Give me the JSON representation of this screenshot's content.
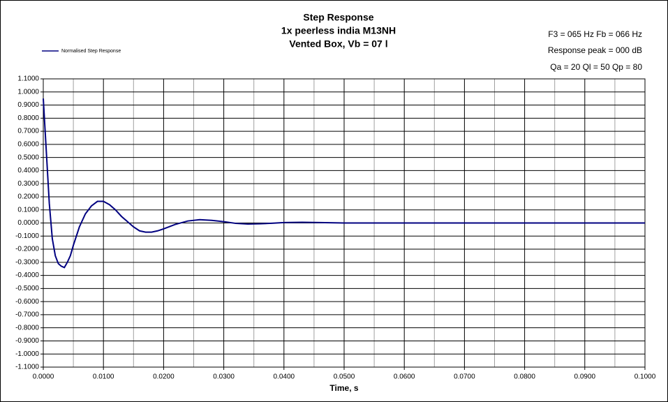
{
  "chart_data": {
    "type": "line",
    "title": [
      "Step Response",
      "1x peerless india M13NH",
      "Vented Box, Vb = 07 l"
    ],
    "annotations": [
      "F3 = 065 Hz  Fb = 066 Hz",
      "Response peak = 000 dB",
      "Qa = 20  Ql = 50  Qp = 80"
    ],
    "x_label": "Time, s",
    "x": [
      0,
      0.0005,
      0.001,
      0.0015,
      0.002,
      0.0025,
      0.003,
      0.0035,
      0.004,
      0.0045,
      0.005,
      0.006,
      0.007,
      0.008,
      0.009,
      0.01,
      0.011,
      0.012,
      0.013,
      0.014,
      0.015,
      0.016,
      0.017,
      0.018,
      0.019,
      0.02,
      0.022,
      0.024,
      0.026,
      0.028,
      0.03,
      0.032,
      0.034,
      0.036,
      0.038,
      0.04,
      0.043,
      0.046,
      0.05,
      0.06,
      0.07,
      0.08,
      0.09,
      0.1
    ],
    "series": [
      {
        "name": "Normalised Step Response",
        "color": "#000080",
        "values": [
          0.95,
          0.55,
          0.15,
          -0.12,
          -0.25,
          -0.31,
          -0.33,
          -0.34,
          -0.3,
          -0.25,
          -0.17,
          -0.03,
          0.07,
          0.13,
          0.165,
          0.165,
          0.14,
          0.1,
          0.05,
          0.01,
          -0.03,
          -0.06,
          -0.07,
          -0.07,
          -0.06,
          -0.045,
          -0.01,
          0.015,
          0.025,
          0.02,
          0.01,
          -0.003,
          -0.008,
          -0.006,
          -0.002,
          0.003,
          0.005,
          0.003,
          0,
          0,
          0,
          0,
          0,
          0
        ]
      }
    ],
    "xlim": [
      0,
      0.1
    ],
    "xticks": [
      {
        "value": 0,
        "label": "0.0000"
      },
      {
        "value": 0.01,
        "label": "0.0100"
      },
      {
        "value": 0.02,
        "label": "0.0200"
      },
      {
        "value": 0.03,
        "label": "0.0300"
      },
      {
        "value": 0.04,
        "label": "0.0400"
      },
      {
        "value": 0.05,
        "label": "0.0500"
      },
      {
        "value": 0.06,
        "label": "0.0600"
      },
      {
        "value": 0.07,
        "label": "0.0700"
      },
      {
        "value": 0.08,
        "label": "0.0800"
      },
      {
        "value": 0.09,
        "label": "0.0900"
      },
      {
        "value": 0.1,
        "label": "0.1000"
      }
    ],
    "ylim": [
      -1.1,
      1.1
    ],
    "yticks": [
      {
        "value": 1.1,
        "label": "1.1000"
      },
      {
        "value": 1.0,
        "label": "1.0000"
      },
      {
        "value": 0.9,
        "label": "0.9000"
      },
      {
        "value": 0.8,
        "label": "0.8000"
      },
      {
        "value": 0.7,
        "label": "0.7000"
      },
      {
        "value": 0.6,
        "label": "0.6000"
      },
      {
        "value": 0.5,
        "label": "0.5000"
      },
      {
        "value": 0.4,
        "label": "0.4000"
      },
      {
        "value": 0.3,
        "label": "0.3000"
      },
      {
        "value": 0.2,
        "label": "0.2000"
      },
      {
        "value": 0.1,
        "label": "0.1000"
      },
      {
        "value": 0,
        "label": "0.0000"
      },
      {
        "value": -0.1,
        "label": "-0.1000"
      },
      {
        "value": -0.2,
        "label": "-0.2000"
      },
      {
        "value": -0.3,
        "label": "-0.3000"
      },
      {
        "value": -0.4,
        "label": "-0.4000"
      },
      {
        "value": -0.5,
        "label": "-0.5000"
      },
      {
        "value": -0.6,
        "label": "-0.6000"
      },
      {
        "value": -0.7,
        "label": "-0.7000"
      },
      {
        "value": -0.8,
        "label": "-0.8000"
      },
      {
        "value": -0.9,
        "label": "-0.9000"
      },
      {
        "value": -1.0,
        "label": "-1.0000"
      },
      {
        "value": -1.1,
        "label": "-1.1000"
      }
    ],
    "grid": true,
    "legend": "top-left"
  }
}
